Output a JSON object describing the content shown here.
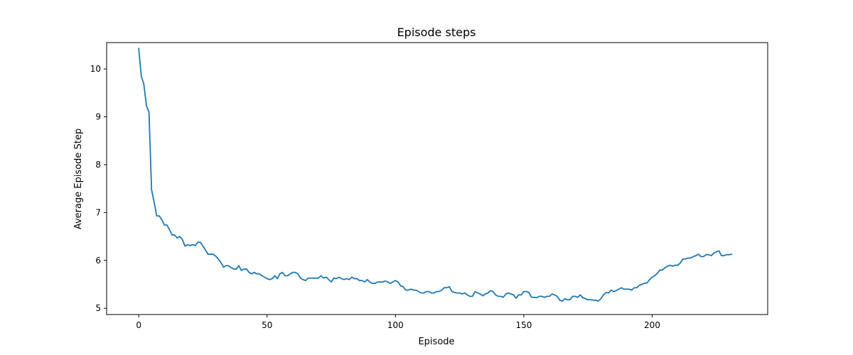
{
  "chart_data": {
    "type": "line",
    "title": "Episode steps",
    "xlabel": "Episode",
    "ylabel": "Average Episode Step",
    "xlim": [
      -12.5,
      245
    ],
    "ylim": [
      4.87,
      10.55
    ],
    "xticks": [
      0,
      50,
      100,
      150,
      200
    ],
    "yticks": [
      5,
      6,
      7,
      8,
      9,
      10
    ],
    "grid": false,
    "series": [
      {
        "color": "#1f77b4",
        "points": [
          [
            0,
            10.43
          ],
          [
            1,
            9.85
          ],
          [
            2,
            9.68
          ],
          [
            3,
            9.23
          ],
          [
            4,
            9.1
          ],
          [
            5,
            7.48
          ],
          [
            6,
            7.22
          ],
          [
            7,
            6.93
          ],
          [
            8,
            6.93
          ],
          [
            9,
            6.85
          ],
          [
            10,
            6.74
          ],
          [
            11,
            6.74
          ],
          [
            12,
            6.64
          ],
          [
            13,
            6.53
          ],
          [
            14,
            6.53
          ],
          [
            15,
            6.47
          ],
          [
            16,
            6.5
          ],
          [
            17,
            6.44
          ],
          [
            18,
            6.3
          ],
          [
            19,
            6.33
          ],
          [
            20,
            6.31
          ],
          [
            21,
            6.33
          ],
          [
            22,
            6.31
          ],
          [
            23,
            6.38
          ],
          [
            24,
            6.38
          ],
          [
            25,
            6.3
          ],
          [
            26,
            6.22
          ],
          [
            27,
            6.13
          ],
          [
            28,
            6.13
          ],
          [
            29,
            6.13
          ],
          [
            30,
            6.09
          ],
          [
            31,
            6.03
          ],
          [
            32,
            5.96
          ],
          [
            33,
            5.86
          ],
          [
            34,
            5.89
          ],
          [
            35,
            5.89
          ],
          [
            36,
            5.85
          ],
          [
            37,
            5.82
          ],
          [
            38,
            5.82
          ],
          [
            39,
            5.89
          ],
          [
            40,
            5.79
          ],
          [
            41,
            5.82
          ],
          [
            42,
            5.82
          ],
          [
            43,
            5.75
          ],
          [
            44,
            5.72
          ],
          [
            45,
            5.75
          ],
          [
            46,
            5.72
          ],
          [
            47,
            5.72
          ],
          [
            48,
            5.68
          ],
          [
            49,
            5.65
          ],
          [
            50,
            5.62
          ],
          [
            51,
            5.6
          ],
          [
            52,
            5.62
          ],
          [
            53,
            5.68
          ],
          [
            54,
            5.62
          ],
          [
            55,
            5.72
          ],
          [
            56,
            5.75
          ],
          [
            57,
            5.68
          ],
          [
            58,
            5.68
          ],
          [
            59,
            5.72
          ],
          [
            60,
            5.75
          ],
          [
            61,
            5.75
          ],
          [
            62,
            5.72
          ],
          [
            63,
            5.63
          ],
          [
            64,
            5.6
          ],
          [
            65,
            5.58
          ],
          [
            66,
            5.63
          ],
          [
            67,
            5.63
          ],
          [
            68,
            5.63
          ],
          [
            69,
            5.63
          ],
          [
            70,
            5.63
          ],
          [
            71,
            5.68
          ],
          [
            72,
            5.63
          ],
          [
            73,
            5.65
          ],
          [
            74,
            5.6
          ],
          [
            75,
            5.55
          ],
          [
            76,
            5.63
          ],
          [
            77,
            5.62
          ],
          [
            78,
            5.65
          ],
          [
            79,
            5.62
          ],
          [
            80,
            5.6
          ],
          [
            81,
            5.62
          ],
          [
            82,
            5.6
          ],
          [
            83,
            5.65
          ],
          [
            84,
            5.62
          ],
          [
            85,
            5.62
          ],
          [
            86,
            5.58
          ],
          [
            87,
            5.58
          ],
          [
            88,
            5.55
          ],
          [
            89,
            5.6
          ],
          [
            90,
            5.55
          ],
          [
            91,
            5.52
          ],
          [
            92,
            5.52
          ],
          [
            93,
            5.55
          ],
          [
            94,
            5.55
          ],
          [
            95,
            5.55
          ],
          [
            96,
            5.57
          ],
          [
            97,
            5.55
          ],
          [
            98,
            5.52
          ],
          [
            99,
            5.55
          ],
          [
            100,
            5.58
          ],
          [
            101,
            5.55
          ],
          [
            102,
            5.47
          ],
          [
            103,
            5.45
          ],
          [
            104,
            5.38
          ],
          [
            105,
            5.38
          ],
          [
            106,
            5.4
          ],
          [
            107,
            5.38
          ],
          [
            108,
            5.38
          ],
          [
            109,
            5.35
          ],
          [
            110,
            5.32
          ],
          [
            111,
            5.32
          ],
          [
            112,
            5.35
          ],
          [
            113,
            5.35
          ],
          [
            114,
            5.32
          ],
          [
            115,
            5.32
          ],
          [
            116,
            5.35
          ],
          [
            117,
            5.35
          ],
          [
            118,
            5.38
          ],
          [
            119,
            5.43
          ],
          [
            120,
            5.43
          ],
          [
            121,
            5.45
          ],
          [
            122,
            5.35
          ],
          [
            123,
            5.33
          ],
          [
            124,
            5.32
          ],
          [
            125,
            5.32
          ],
          [
            126,
            5.3
          ],
          [
            127,
            5.32
          ],
          [
            128,
            5.28
          ],
          [
            129,
            5.25
          ],
          [
            130,
            5.25
          ],
          [
            131,
            5.35
          ],
          [
            132,
            5.32
          ],
          [
            133,
            5.3
          ],
          [
            134,
            5.26
          ],
          [
            135,
            5.3
          ],
          [
            136,
            5.32
          ],
          [
            137,
            5.37
          ],
          [
            138,
            5.35
          ],
          [
            139,
            5.28
          ],
          [
            140,
            5.25
          ],
          [
            141,
            5.25
          ],
          [
            142,
            5.23
          ],
          [
            143,
            5.3
          ],
          [
            144,
            5.32
          ],
          [
            145,
            5.3
          ],
          [
            146,
            5.28
          ],
          [
            147,
            5.21
          ],
          [
            148,
            5.28
          ],
          [
            149,
            5.28
          ],
          [
            150,
            5.35
          ],
          [
            151,
            5.35
          ],
          [
            152,
            5.33
          ],
          [
            153,
            5.23
          ],
          [
            154,
            5.23
          ],
          [
            155,
            5.22
          ],
          [
            156,
            5.25
          ],
          [
            157,
            5.25
          ],
          [
            158,
            5.23
          ],
          [
            159,
            5.25
          ],
          [
            160,
            5.25
          ],
          [
            161,
            5.3
          ],
          [
            162,
            5.28
          ],
          [
            163,
            5.25
          ],
          [
            164,
            5.17
          ],
          [
            165,
            5.15
          ],
          [
            166,
            5.2
          ],
          [
            167,
            5.18
          ],
          [
            168,
            5.18
          ],
          [
            169,
            5.25
          ],
          [
            170,
            5.25
          ],
          [
            171,
            5.23
          ],
          [
            172,
            5.28
          ],
          [
            173,
            5.22
          ],
          [
            174,
            5.2
          ],
          [
            175,
            5.18
          ],
          [
            176,
            5.18
          ],
          [
            177,
            5.17
          ],
          [
            178,
            5.17
          ],
          [
            179,
            5.15
          ],
          [
            180,
            5.2
          ],
          [
            181,
            5.28
          ],
          [
            182,
            5.33
          ],
          [
            183,
            5.32
          ],
          [
            184,
            5.38
          ],
          [
            185,
            5.35
          ],
          [
            186,
            5.37
          ],
          [
            187,
            5.4
          ],
          [
            188,
            5.43
          ],
          [
            189,
            5.4
          ],
          [
            190,
            5.4
          ],
          [
            191,
            5.4
          ],
          [
            192,
            5.38
          ],
          [
            193,
            5.43
          ],
          [
            194,
            5.43
          ],
          [
            195,
            5.48
          ],
          [
            196,
            5.5
          ],
          [
            197,
            5.52
          ],
          [
            198,
            5.53
          ],
          [
            199,
            5.6
          ],
          [
            200,
            5.65
          ],
          [
            201,
            5.68
          ],
          [
            202,
            5.73
          ],
          [
            203,
            5.8
          ],
          [
            204,
            5.8
          ],
          [
            205,
            5.85
          ],
          [
            206,
            5.88
          ],
          [
            207,
            5.9
          ],
          [
            208,
            5.88
          ],
          [
            209,
            5.9
          ],
          [
            210,
            5.9
          ],
          [
            211,
            5.95
          ],
          [
            212,
            6.03
          ],
          [
            213,
            6.03
          ],
          [
            214,
            6.05
          ],
          [
            215,
            6.05
          ],
          [
            216,
            6.08
          ],
          [
            217,
            6.1
          ],
          [
            218,
            6.13
          ],
          [
            219,
            6.08
          ],
          [
            220,
            6.08
          ],
          [
            221,
            6.12
          ],
          [
            222,
            6.12
          ],
          [
            223,
            6.1
          ],
          [
            224,
            6.15
          ],
          [
            225,
            6.18
          ],
          [
            226,
            6.2
          ],
          [
            227,
            6.1
          ],
          [
            228,
            6.1
          ],
          [
            229,
            6.12
          ],
          [
            230,
            6.12
          ],
          [
            231,
            6.13
          ]
        ]
      }
    ]
  }
}
